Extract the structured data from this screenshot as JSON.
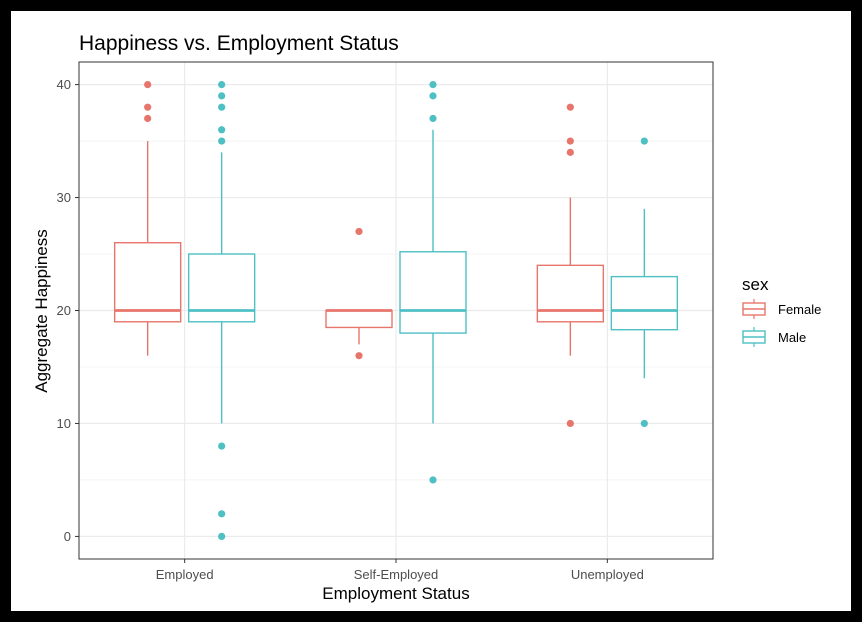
{
  "chart_data": {
    "type": "boxplot",
    "title": "Happiness vs. Employment Status",
    "xlabel": "Employment Status",
    "ylabel": "Aggregate Happiness",
    "ylim": [
      -2,
      42
    ],
    "yticks": [
      0,
      10,
      20,
      30,
      40
    ],
    "categories": [
      "Employed",
      "Self-Employed",
      "Unemployed"
    ],
    "grid": true,
    "legend": {
      "title": "sex",
      "position": "right"
    },
    "series": [
      {
        "name": "Female",
        "color": "#E8756C",
        "boxes": [
          {
            "category": "Employed",
            "whisker_low": 16,
            "q1": 19,
            "median": 20,
            "q3": 26,
            "whisker_high": 35,
            "outliers": [
              37,
              38,
              40
            ]
          },
          {
            "category": "Self-Employed",
            "whisker_low": 17,
            "q1": 18.5,
            "median": 20,
            "q3": 20,
            "whisker_high": 20,
            "outliers": [
              16,
              27
            ]
          },
          {
            "category": "Unemployed",
            "whisker_low": 16,
            "q1": 19,
            "median": 20,
            "q3": 24,
            "whisker_high": 30,
            "outliers": [
              10,
              34,
              35,
              38
            ]
          }
        ]
      },
      {
        "name": "Male",
        "color": "#4EC0C4",
        "boxes": [
          {
            "category": "Employed",
            "whisker_low": 10,
            "q1": 19,
            "median": 20,
            "q3": 25,
            "whisker_high": 34,
            "outliers": [
              0,
              2,
              8,
              35,
              36,
              38,
              39,
              40
            ]
          },
          {
            "category": "Self-Employed",
            "whisker_low": 10,
            "q1": 18,
            "median": 20,
            "q3": 25.2,
            "whisker_high": 36,
            "outliers": [
              5,
              37,
              39,
              40
            ]
          },
          {
            "category": "Unemployed",
            "whisker_low": 14,
            "q1": 18.3,
            "median": 20,
            "q3": 23,
            "whisker_high": 29,
            "outliers": [
              10,
              35
            ]
          }
        ]
      }
    ]
  }
}
